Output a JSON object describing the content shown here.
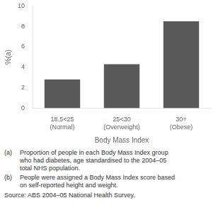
{
  "chart_data": {
    "type": "bar",
    "categories": [
      "18.5<25\n(Normal)",
      "25<30\n(Overweight)",
      "30+\n(Obese)"
    ],
    "values": [
      2.8,
      4.3,
      8.5
    ],
    "color": "#595959",
    "xlabel": "Body Mass Index",
    "ylabel": "%(a)",
    "ylim": [
      0,
      10
    ],
    "yticks": [
      0,
      2,
      4,
      6,
      8,
      10
    ],
    "grid": false,
    "annotations": [
      {
        "label": "(a)",
        "text": "Proportion of people in each Body Mass Index group\nwho had diabetes, age standardised to the 2004–05\ntotal NHS population."
      },
      {
        "label": "(b)",
        "text": "People were assigned a Body Mass Index score based\non self-reported height and weight."
      },
      {
        "text": "Source: ABS 2004–05 National Health Survey."
      }
    ]
  }
}
